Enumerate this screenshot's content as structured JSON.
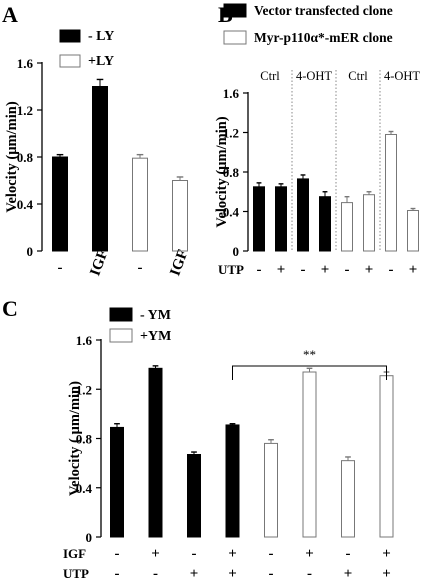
{
  "chart_data": [
    {
      "panel": "A",
      "type": "bar",
      "ylabel": "Velocity (µm/min)",
      "ylim": [
        0,
        1.6
      ],
      "yticks": [
        "0",
        "0.4",
        "0.8",
        "1.2",
        "1.6"
      ],
      "yticks_values": [
        0,
        0.4,
        0.8,
        1.2,
        1.6
      ],
      "categories": [
        "-",
        "IGF",
        "-",
        "IGF"
      ],
      "values": [
        0.8,
        1.4,
        0.79,
        0.6
      ],
      "errors": [
        0.02,
        0.06,
        0.03,
        0.03
      ],
      "fills": [
        "#000000",
        "#000000",
        "#ffffff",
        "#ffffff"
      ],
      "legend": [
        {
          "label": "- LY",
          "fill": "#000000"
        },
        {
          "label": "+LY",
          "fill": "#ffffff"
        }
      ]
    },
    {
      "panel": "B",
      "type": "bar",
      "ylabel": "Velocity (µm/min)",
      "ylim": [
        0,
        1.6
      ],
      "yticks": [
        "0",
        "0.4",
        "0.8",
        "1.2",
        "1.6"
      ],
      "yticks_values": [
        0,
        0.4,
        0.8,
        1.2,
        1.6
      ],
      "group_labels": [
        "Ctrl",
        "4-OHT",
        "Ctrl",
        "4-OHT"
      ],
      "row_label": "UTP",
      "categories": [
        "-",
        "+",
        "-",
        "+",
        "-",
        "+",
        "-",
        "+"
      ],
      "values": [
        0.65,
        0.65,
        0.73,
        0.55,
        0.49,
        0.57,
        1.18,
        0.41
      ],
      "errors": [
        0.04,
        0.03,
        0.04,
        0.05,
        0.06,
        0.03,
        0.03,
        0.02
      ],
      "fills": [
        "#000000",
        "#000000",
        "#000000",
        "#000000",
        "#ffffff",
        "#ffffff",
        "#ffffff",
        "#ffffff"
      ],
      "legend": [
        {
          "label": "Vector transfected clone",
          "fill": "#000000"
        },
        {
          "label": "Myr-p110α*-mER clone",
          "fill": "#ffffff"
        }
      ]
    },
    {
      "panel": "C",
      "type": "bar",
      "ylabel": "Velocity ( µm/min)",
      "ylim": [
        0,
        1.6
      ],
      "yticks": [
        "0",
        "0.4",
        "0.8",
        "1.2",
        "1.6"
      ],
      "yticks_values": [
        0,
        0.4,
        0.8,
        1.2,
        1.6
      ],
      "row_labels": [
        "IGF",
        "UTP"
      ],
      "igf": [
        "-",
        "+",
        "-",
        "+",
        "-",
        "+",
        "-",
        "+"
      ],
      "utp": [
        "-",
        "-",
        "+",
        "+",
        "-",
        "-",
        "+",
        "+"
      ],
      "values": [
        0.89,
        1.37,
        0.67,
        0.91,
        0.76,
        1.34,
        0.62,
        1.31
      ],
      "errors": [
        0.03,
        0.02,
        0.02,
        0.01,
        0.03,
        0.03,
        0.03,
        0.03
      ],
      "fills": [
        "#000000",
        "#000000",
        "#000000",
        "#000000",
        "#ffffff",
        "#ffffff",
        "#ffffff",
        "#ffffff"
      ],
      "legend": [
        {
          "label": "- YM",
          "fill": "#000000"
        },
        {
          "label": "+YM",
          "fill": "#ffffff"
        }
      ],
      "significance": {
        "label": "**",
        "from_bar": 3,
        "to_bar": 7
      }
    }
  ],
  "panel_letters": {
    "a": "A",
    "b": "B",
    "c": "C"
  }
}
